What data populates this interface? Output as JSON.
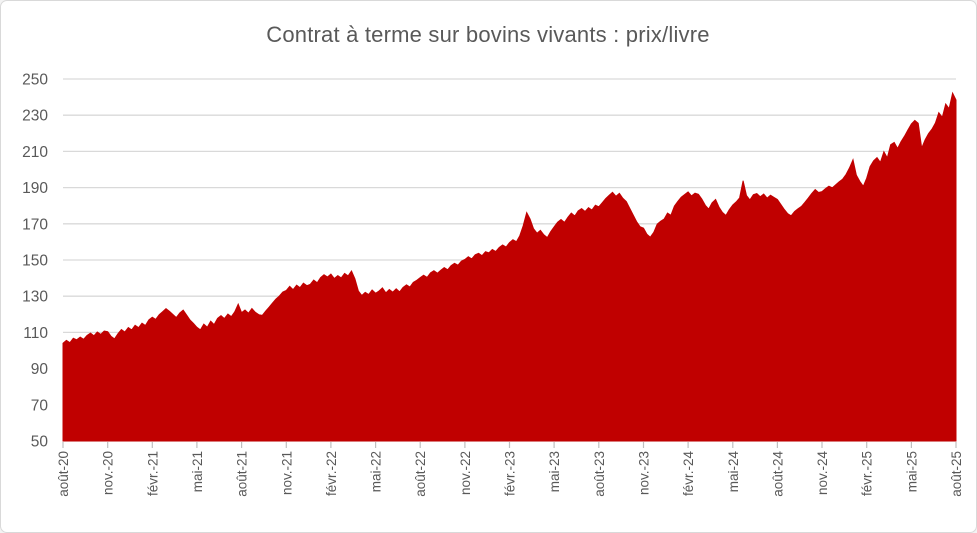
{
  "chart_data": {
    "type": "area",
    "title": "Contrat à terme sur bovins vivants : prix/livre",
    "xlabel": "",
    "ylabel": "",
    "ylim": [
      50,
      250
    ],
    "yticks": [
      50,
      70,
      90,
      110,
      130,
      150,
      170,
      190,
      210,
      230,
      250
    ],
    "grid": "horizontal",
    "legend": "none",
    "x_tick_labels": [
      "août-20",
      "nov.-20",
      "févr.-21",
      "mai-21",
      "août-21",
      "nov.-21",
      "févr.-22",
      "mai-22",
      "août-22",
      "nov.-22",
      "févr.-23",
      "mai-23",
      "août-23",
      "nov.-23",
      "févr.-24",
      "mai-24",
      "août-24",
      "nov.-24",
      "févr.-25",
      "mai-25",
      "août-25"
    ],
    "x_unit": "weekly prices, août 2020 → août 2025",
    "values": [
      104.0,
      105.6,
      104.3,
      106.8,
      105.9,
      107.4,
      106.2,
      108.3,
      109.6,
      108.1,
      110.2,
      108.9,
      110.8,
      110.4,
      107.8,
      106.4,
      109.3,
      111.6,
      110.2,
      112.7,
      111.4,
      113.9,
      112.6,
      115.1,
      113.8,
      116.9,
      118.4,
      117.2,
      119.8,
      121.4,
      123.1,
      121.6,
      119.9,
      118.2,
      120.7,
      122.3,
      119.6,
      116.8,
      114.9,
      112.8,
      111.4,
      114.6,
      112.9,
      116.2,
      114.3,
      117.8,
      119.2,
      117.6,
      120.1,
      118.7,
      121.3,
      125.6,
      120.9,
      122.4,
      120.6,
      123.2,
      121.1,
      119.8,
      119.4,
      121.7,
      123.9,
      126.2,
      128.4,
      130.1,
      132.3,
      133.2,
      135.4,
      133.6,
      136.1,
      134.7,
      137.2,
      135.8,
      136.6,
      138.9,
      137.4,
      140.3,
      141.9,
      140.6,
      142.2,
      139.8,
      141.4,
      140.1,
      142.6,
      141.2,
      143.9,
      139.6,
      132.8,
      130.4,
      132.1,
      130.9,
      133.4,
      131.6,
      132.9,
      134.6,
      131.8,
      133.7,
      132.2,
      134.1,
      132.4,
      134.8,
      136.3,
      135.1,
      137.6,
      138.8,
      140.2,
      141.6,
      140.4,
      142.9,
      144.1,
      142.7,
      144.3,
      145.8,
      144.6,
      146.9,
      148.2,
      147.1,
      149.4,
      150.3,
      151.8,
      150.6,
      152.9,
      153.7,
      152.4,
      154.6,
      153.9,
      155.8,
      154.7,
      156.9,
      158.3,
      157.2,
      159.6,
      161.2,
      160.1,
      163.4,
      168.9,
      176.2,
      172.6,
      167.3,
      164.8,
      166.4,
      163.9,
      162.4,
      165.7,
      168.3,
      170.9,
      172.4,
      170.8,
      173.6,
      175.9,
      174.3,
      177.2,
      178.4,
      176.8,
      178.9,
      177.6,
      180.3,
      179.4,
      181.6,
      183.9,
      185.7,
      187.4,
      185.2,
      186.8,
      184.1,
      182.3,
      178.6,
      174.9,
      171.2,
      168.4,
      167.6,
      164.2,
      162.6,
      165.3,
      169.8,
      171.4,
      172.6,
      175.9,
      174.7,
      179.8,
      182.4,
      184.7,
      186.2,
      187.6,
      185.4,
      186.9,
      186.3,
      183.7,
      180.2,
      178.1,
      181.6,
      183.4,
      179.2,
      176.3,
      174.6,
      177.8,
      180.4,
      182.1,
      184.3,
      193.8,
      185.6,
      183.2,
      186.1,
      186.7,
      184.9,
      186.4,
      184.2,
      185.8,
      184.6,
      183.4,
      180.7,
      177.9,
      175.6,
      174.4,
      176.8,
      178.3,
      179.6,
      181.9,
      184.2,
      186.7,
      188.9,
      187.3,
      187.8,
      189.4,
      190.8,
      189.9,
      191.6,
      193.2,
      194.7,
      197.3,
      200.9,
      205.4,
      196.8,
      193.4,
      190.7,
      195.2,
      201.6,
      204.8,
      206.6,
      203.9,
      209.8,
      206.4,
      213.7,
      214.9,
      211.6,
      215.3,
      218.4,
      221.8,
      225.2,
      227.1,
      225.6,
      211.8,
      216.4,
      219.8,
      222.3,
      225.7,
      231.4,
      228.8,
      236.2,
      233.6,
      242.2,
      238.4
    ]
  },
  "colors": {
    "area": "#c00000",
    "grid": "#d9d9d9",
    "axis_text": "#595959",
    "title_text": "#595959",
    "tick_mark": "#bfbfbf",
    "frame_border": "#d9d9d9",
    "background": "#ffffff"
  }
}
